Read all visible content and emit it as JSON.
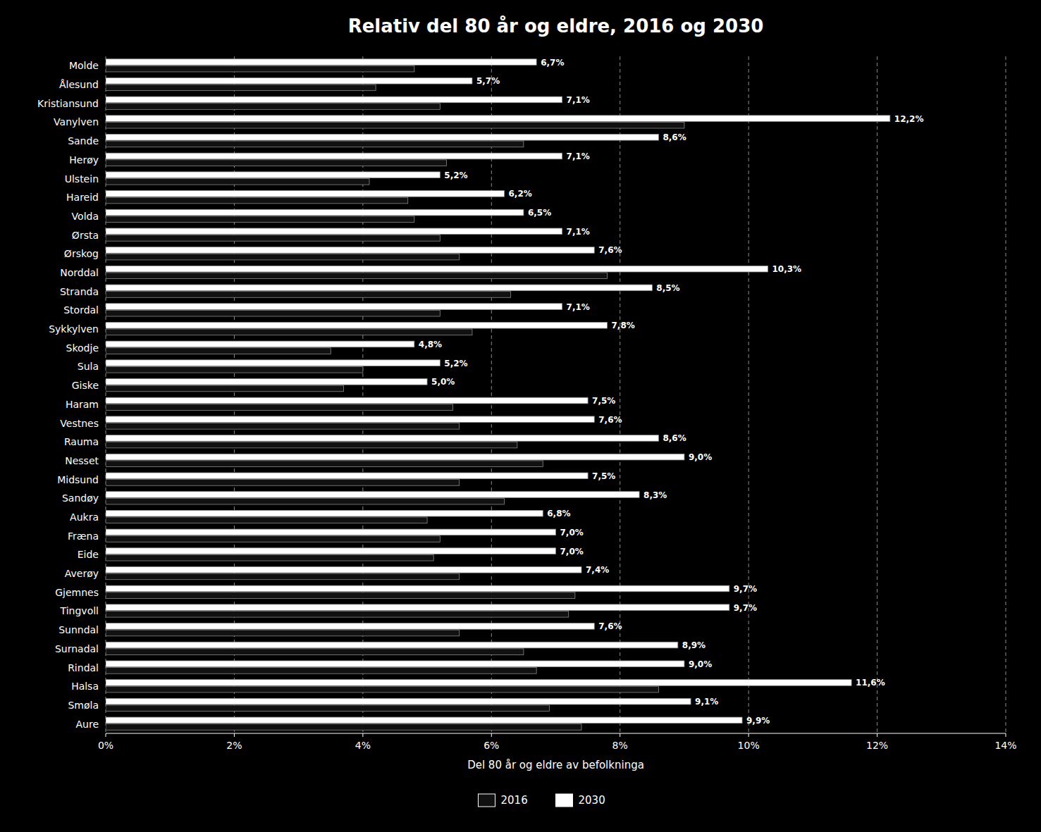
{
  "chart_data": {
    "type": "bar",
    "orientation": "horizontal",
    "title": "Relativ del 80 år og eldre, 2016 og 2030",
    "x_label": "Del 80 år og eldre av befolkninga",
    "categories": [
      "Molde",
      "Ålesund",
      "Kristiansund",
      "Vanylven",
      "Sande",
      "Herøy",
      "Ulstein",
      "Hareid",
      "Volda",
      "Ørsta",
      "Ørskog",
      "Norddal",
      "Stranda",
      "Stordal",
      "Sykkylven",
      "Skodje",
      "Sula",
      "Giske",
      "Haram",
      "Vestnes",
      "Rauma",
      "Nesset",
      "Midsund",
      "Sandøy",
      "Aukra",
      "Fræna",
      "Eide",
      "Averøy",
      "Gjemnes",
      "Tingvoll",
      "Sunndal",
      "Surnadal",
      "Rindal",
      "Halsa",
      "Smøla",
      "Aure"
    ],
    "series": [
      {
        "name": "2016",
        "color": "#111111",
        "values": [
          4.8,
          4.2,
          5.2,
          9.0,
          6.5,
          5.3,
          4.1,
          4.7,
          4.8,
          5.2,
          5.5,
          7.8,
          6.3,
          5.2,
          5.7,
          3.5,
          4.0,
          3.7,
          5.4,
          5.5,
          6.4,
          6.8,
          5.5,
          6.2,
          5.0,
          5.2,
          5.1,
          5.5,
          7.3,
          7.2,
          5.5,
          6.5,
          6.7,
          8.6,
          6.9,
          7.4
        ]
      },
      {
        "name": "2030",
        "color": "#ffffff",
        "data_labels": true,
        "values": [
          6.7,
          5.7,
          7.1,
          12.2,
          8.6,
          7.1,
          5.2,
          6.2,
          6.5,
          7.1,
          7.6,
          10.3,
          8.5,
          7.1,
          7.8,
          4.8,
          5.2,
          5.0,
          7.5,
          7.6,
          8.6,
          9.0,
          7.5,
          8.3,
          6.8,
          7.0,
          7.0,
          7.4,
          9.7,
          9.7,
          7.6,
          8.9,
          9.0,
          11.6,
          9.1,
          9.9
        ],
        "value_labels": [
          "6,7%",
          "5,7%",
          "7,1%",
          "12,2%",
          "8,6%",
          "7,1%",
          "5,2%",
          "6,2%",
          "6,5%",
          "7,1%",
          "7,6%",
          "10,3%",
          "8,5%",
          "7,1%",
          "7,8%",
          "4,8%",
          "5,2%",
          "5,0%",
          "7,5%",
          "7,6%",
          "8,6%",
          "9,0%",
          "7,5%",
          "8,3%",
          "6,8%",
          "7,0%",
          "7,0%",
          "7,4%",
          "9,7%",
          "9,7%",
          "7,6%",
          "8,9%",
          "9,0%",
          "11,6%",
          "9,1%",
          "9,9%"
        ]
      }
    ],
    "xlim": [
      0,
      14
    ],
    "xticks": [
      {
        "value": 0,
        "label": "0%"
      },
      {
        "value": 2,
        "label": "2%"
      },
      {
        "value": 4,
        "label": "4%"
      },
      {
        "value": 6,
        "label": "6%"
      },
      {
        "value": 8,
        "label": "8%"
      },
      {
        "value": 10,
        "label": "10%"
      },
      {
        "value": 12,
        "label": "12%"
      },
      {
        "value": 14,
        "label": "14%"
      }
    ],
    "grid": true,
    "legend": "bottom"
  }
}
